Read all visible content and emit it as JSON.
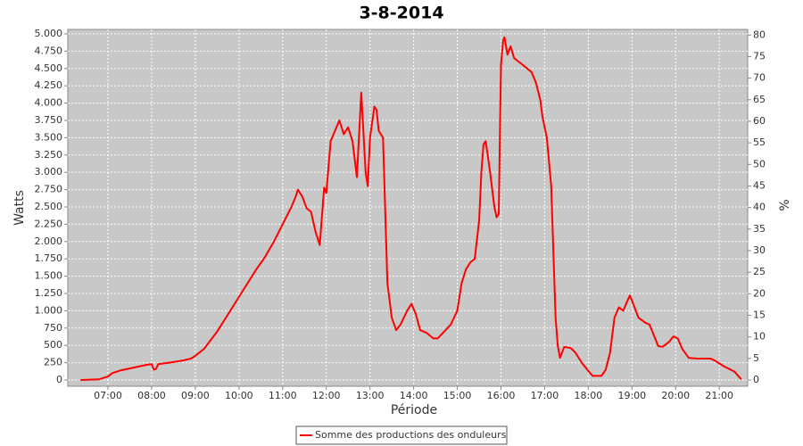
{
  "chart_data": {
    "type": "line",
    "title": "3-8-2014",
    "xlabel": "Période",
    "ylabel": "Watts",
    "y2label": "%",
    "x": [
      6.37,
      6.8,
      7.0,
      7.1,
      7.3,
      7.6,
      7.9,
      8.0,
      8.05,
      8.1,
      8.15,
      8.4,
      8.7,
      8.9,
      9.0,
      9.2,
      9.5,
      9.8,
      10.1,
      10.4,
      10.6,
      10.8,
      11.0,
      11.2,
      11.3,
      11.35,
      11.45,
      11.55,
      11.65,
      11.75,
      11.85,
      11.95,
      12.0,
      12.1,
      12.2,
      12.3,
      12.4,
      12.5,
      12.6,
      12.7,
      12.8,
      12.9,
      12.95,
      13.0,
      13.1,
      13.15,
      13.2,
      13.3,
      13.4,
      13.5,
      13.6,
      13.7,
      13.85,
      13.95,
      14.05,
      14.15,
      14.3,
      14.45,
      14.55,
      14.7,
      14.85,
      15.0,
      15.1,
      15.2,
      15.3,
      15.4,
      15.5,
      15.55,
      15.6,
      15.65,
      15.75,
      15.85,
      15.9,
      15.95,
      16.0,
      16.05,
      16.08,
      16.15,
      16.22,
      16.3,
      16.5,
      16.7,
      16.8,
      16.9,
      16.95,
      17.05,
      17.15,
      17.25,
      17.3,
      17.35,
      17.45,
      17.6,
      17.7,
      17.85,
      18.0,
      18.1,
      18.3,
      18.4,
      18.5,
      18.6,
      18.7,
      18.8,
      18.9,
      18.95,
      19.0,
      19.15,
      19.3,
      19.4,
      19.5,
      19.6,
      19.7,
      19.85,
      19.95,
      20.05,
      20.15,
      20.3,
      20.5,
      20.8,
      20.9,
      21.1,
      21.35,
      21.5
    ],
    "series": [
      {
        "name": "Somme des productions des onduleurs",
        "color": "#ff0000",
        "values": [
          0,
          10,
          50,
          100,
          140,
          180,
          220,
          230,
          150,
          160,
          230,
          250,
          280,
          310,
          350,
          450,
          700,
          1000,
          1300,
          1600,
          1780,
          2000,
          2250,
          2500,
          2650,
          2750,
          2650,
          2480,
          2430,
          2150,
          1950,
          2780,
          2700,
          3450,
          3600,
          3750,
          3550,
          3650,
          3450,
          2930,
          4150,
          3000,
          2800,
          3500,
          3950,
          3900,
          3600,
          3500,
          1400,
          900,
          720,
          800,
          1000,
          1100,
          950,
          720,
          680,
          600,
          600,
          700,
          800,
          1000,
          1400,
          1600,
          1700,
          1750,
          2300,
          3000,
          3400,
          3450,
          3000,
          2500,
          2350,
          2400,
          4550,
          4900,
          4950,
          4700,
          4820,
          4650,
          4550,
          4450,
          4300,
          4050,
          3800,
          3500,
          2800,
          900,
          500,
          320,
          480,
          460,
          400,
          250,
          130,
          60,
          60,
          150,
          400,
          900,
          1050,
          1000,
          1150,
          1220,
          1150,
          900,
          830,
          800,
          650,
          490,
          480,
          550,
          630,
          600,
          450,
          320,
          310,
          310,
          280,
          200,
          120,
          10
        ]
      }
    ],
    "xlim": [
      6.08,
      21.65
    ],
    "xticks": [
      {
        "value": 7,
        "label": "07:00"
      },
      {
        "value": 8,
        "label": "08:00"
      },
      {
        "value": 9,
        "label": "09:00"
      },
      {
        "value": 10,
        "label": "10:00"
      },
      {
        "value": 11,
        "label": "11:00"
      },
      {
        "value": 12,
        "label": "12:00"
      },
      {
        "value": 13,
        "label": "13:00"
      },
      {
        "value": 14,
        "label": "14:00"
      },
      {
        "value": 15,
        "label": "15:00"
      },
      {
        "value": 16,
        "label": "16:00"
      },
      {
        "value": 17,
        "label": "17:00"
      },
      {
        "value": 18,
        "label": "18:00"
      },
      {
        "value": 19,
        "label": "19:00"
      },
      {
        "value": 20,
        "label": "20:00"
      },
      {
        "value": 21,
        "label": "21:00"
      }
    ],
    "ylim": [
      -90,
      5064
    ],
    "yticks": [
      0,
      250,
      500,
      750,
      {
        "value": 1000,
        "label": "1.000"
      },
      {
        "value": 1250,
        "label": "1.250"
      },
      {
        "value": 1500,
        "label": "1.500"
      },
      {
        "value": 1750,
        "label": "1.750"
      },
      {
        "value": 2000,
        "label": "2.000"
      },
      {
        "value": 2250,
        "label": "2.250"
      },
      {
        "value": 2500,
        "label": "2.500"
      },
      {
        "value": 2750,
        "label": "2.750"
      },
      {
        "value": 3000,
        "label": "3.000"
      },
      {
        "value": 3250,
        "label": "3.250"
      },
      {
        "value": 3500,
        "label": "3.500"
      },
      {
        "value": 3750,
        "label": "3.750"
      },
      {
        "value": 4000,
        "label": "4.000"
      },
      {
        "value": 4250,
        "label": "4.250"
      },
      {
        "value": 4500,
        "label": "4.500"
      },
      {
        "value": 4750,
        "label": "4.750"
      },
      {
        "value": 5000,
        "label": "5.000"
      }
    ],
    "y2lim": [
      -1.45,
      81.3
    ],
    "y2ticks": [
      0,
      5,
      10,
      15,
      20,
      25,
      30,
      35,
      40,
      45,
      50,
      55,
      60,
      65,
      70,
      75,
      80
    ],
    "grid": true,
    "legend": "bottom"
  }
}
